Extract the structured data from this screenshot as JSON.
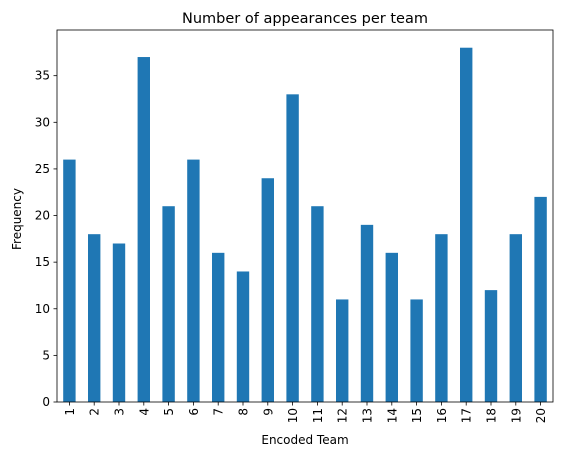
{
  "chart_data": {
    "type": "bar",
    "title": "Number of appearances per team",
    "xlabel": "Encoded Team",
    "ylabel": "Frequency",
    "categories": [
      "1",
      "2",
      "3",
      "4",
      "5",
      "6",
      "7",
      "8",
      "9",
      "10",
      "11",
      "12",
      "13",
      "14",
      "15",
      "16",
      "17",
      "18",
      "19",
      "20"
    ],
    "values": [
      26,
      18,
      17,
      37,
      21,
      26,
      16,
      14,
      24,
      33,
      21,
      11,
      19,
      16,
      11,
      18,
      38,
      12,
      18,
      22
    ],
    "ylim": [
      0,
      39.9
    ],
    "yticks": [
      0,
      5,
      10,
      15,
      20,
      25,
      30,
      35
    ],
    "ytick_labels": [
      "0",
      "5",
      "10",
      "15",
      "20",
      "25",
      "30",
      "35"
    ],
    "bar_color": "#1f77b4",
    "grid": false,
    "legend": "none",
    "xtick_rotation": "vertical"
  }
}
